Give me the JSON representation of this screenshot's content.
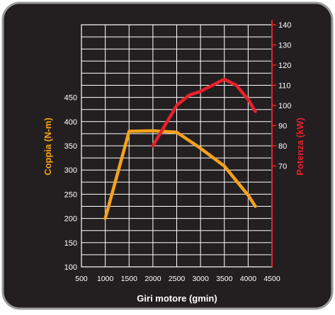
{
  "chart_data": {
    "type": "line",
    "xlabel": "Giri motore (gmin)",
    "x_ticks": [
      500,
      1000,
      1500,
      2000,
      2500,
      3000,
      3500,
      4000,
      4500
    ],
    "xlim": [
      500,
      4500
    ],
    "y_left_label": "Coppia (N-m)",
    "y_left_ticks": [
      100,
      150,
      200,
      250,
      300,
      350,
      400,
      450
    ],
    "y_left_lim": [
      100,
      600
    ],
    "y_right_label": "Potenza (kW)",
    "y_right_ticks": [
      70,
      80,
      90,
      100,
      110,
      120,
      130,
      140
    ],
    "y_right_lim": [
      20,
      140
    ],
    "grid": true,
    "series": [
      {
        "name": "Coppia (N-m)",
        "axis": "left",
        "color": "#f5a21b",
        "x": [
          1000,
          1500,
          2000,
          2500,
          3000,
          3500,
          4000,
          4150
        ],
        "y": [
          200,
          380,
          381,
          378,
          345,
          308,
          248,
          225
        ]
      },
      {
        "name": "Potenza (kW)",
        "axis": "right",
        "color": "#e8202a",
        "x": [
          2000,
          2250,
          2500,
          2750,
          3000,
          3250,
          3500,
          3750,
          4000,
          4150
        ],
        "y": [
          80,
          90,
          100,
          105,
          107,
          110,
          113,
          110,
          103,
          97
        ]
      }
    ]
  }
}
